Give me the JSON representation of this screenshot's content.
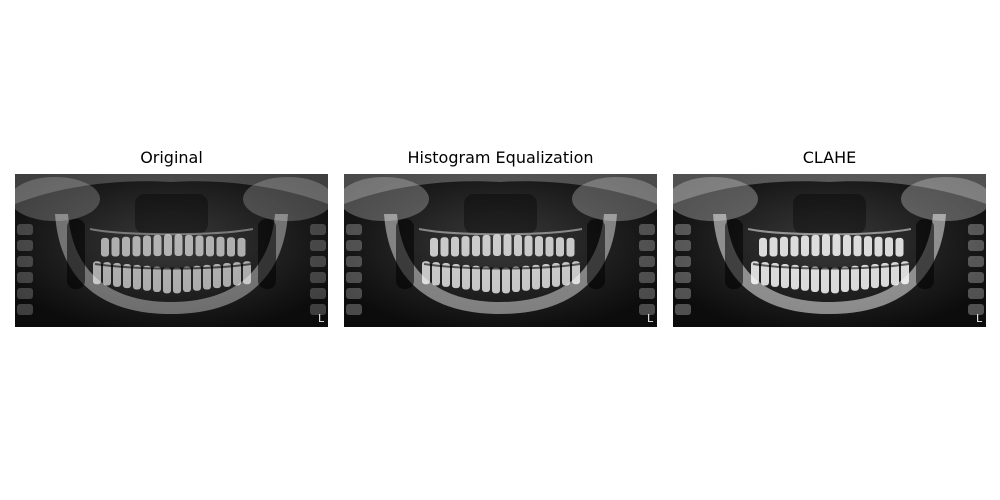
{
  "panels": [
    {
      "title": "Original",
      "contrast": "low"
    },
    {
      "title": "Histogram Equalization",
      "contrast": "medium"
    },
    {
      "title": "CLAHE",
      "contrast": "high"
    }
  ],
  "image": {
    "subject": "panoramic dental x-ray",
    "side_marker": "L",
    "palette": "grayscale"
  }
}
